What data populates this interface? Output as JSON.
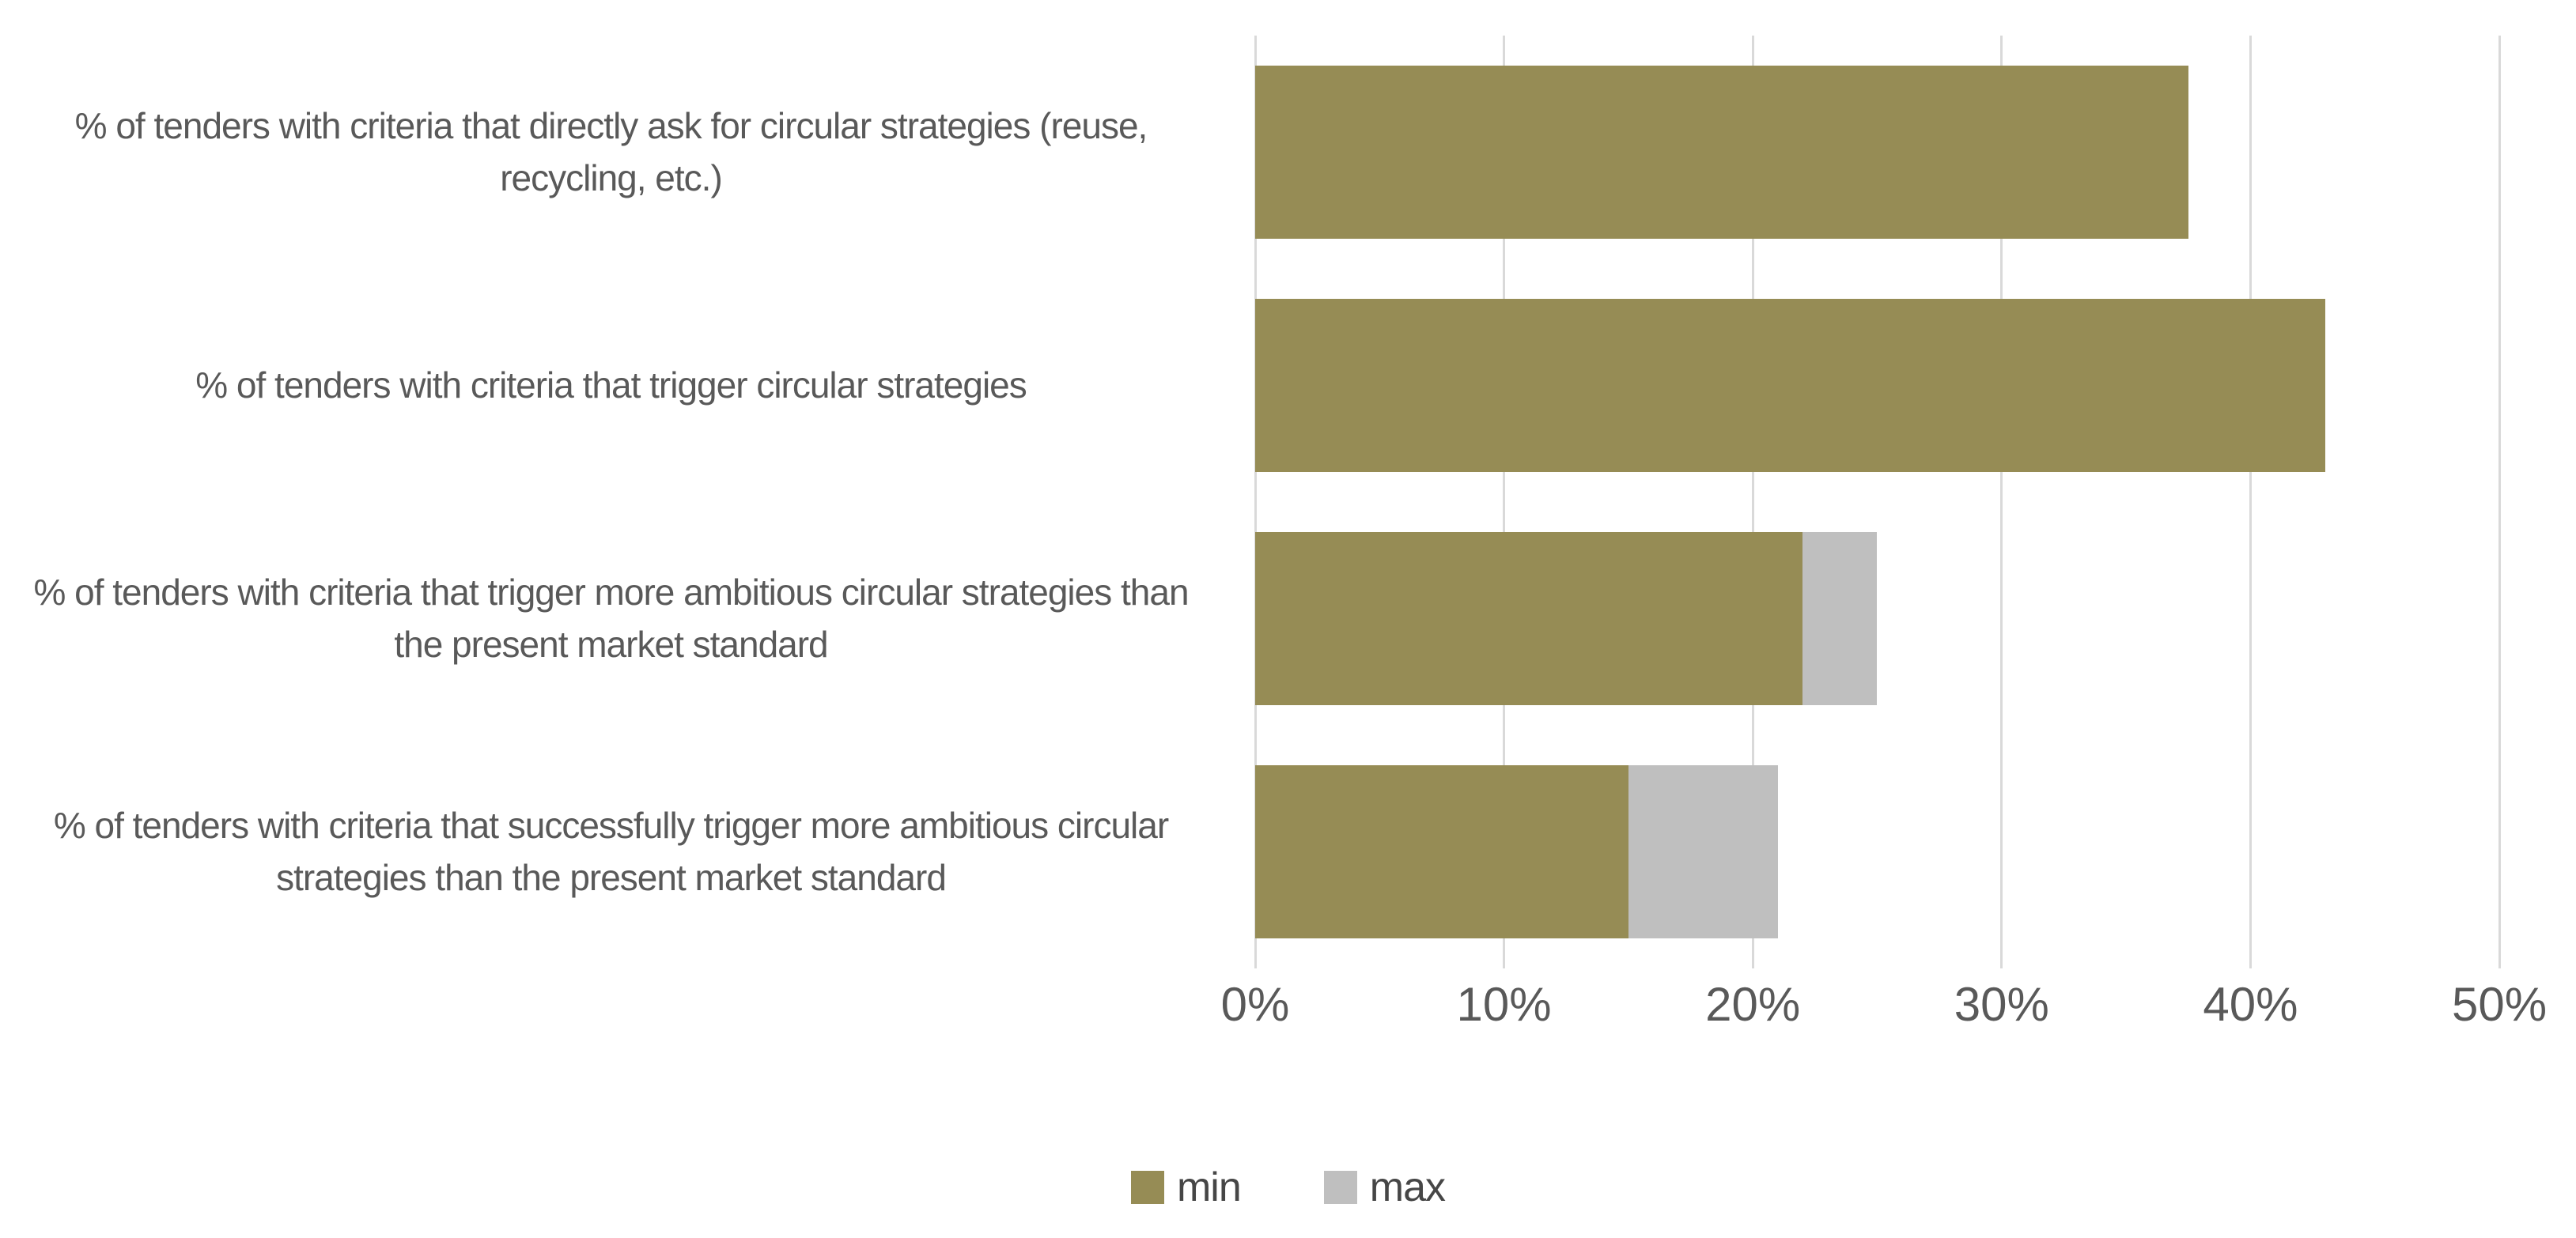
{
  "chart_data": {
    "type": "bar",
    "orientation": "horizontal",
    "stacked": true,
    "title": "",
    "xlabel": "",
    "ylabel": "",
    "categories": [
      "% of tenders with criteria that directly ask for circular strategies (reuse, recycling, etc.)",
      "% of tenders with criteria that trigger circular strategies",
      "% of tenders with criteria that trigger more ambitious circular strategies  than the present market standard",
      "% of tenders with criteria that successfully trigger more ambitious circular strategies  than the present market standard"
    ],
    "series": [
      {
        "name": "min",
        "color": "#968C55",
        "values": [
          37.5,
          43,
          22,
          15
        ]
      },
      {
        "name": "max",
        "color": "#BFBFBF",
        "values": [
          37.5,
          43,
          25,
          21
        ]
      }
    ],
    "xlim": [
      0,
      50
    ],
    "x_tick_values": [
      0,
      10,
      20,
      30,
      40,
      50
    ],
    "x_ticks": [
      "0%",
      "10%",
      "20%",
      "30%",
      "40%",
      "50%"
    ],
    "grid": true,
    "legend_position": "bottom"
  },
  "legend": {
    "items": [
      {
        "label": "min",
        "color": "#968C55"
      },
      {
        "label": "max",
        "color": "#BFBFBF"
      }
    ]
  },
  "colors": {
    "min_bar": "#968C55",
    "max_bar": "#BFBFBF",
    "gridline": "#d9d9d9",
    "label_text": "#595959",
    "background": "#ffffff"
  }
}
